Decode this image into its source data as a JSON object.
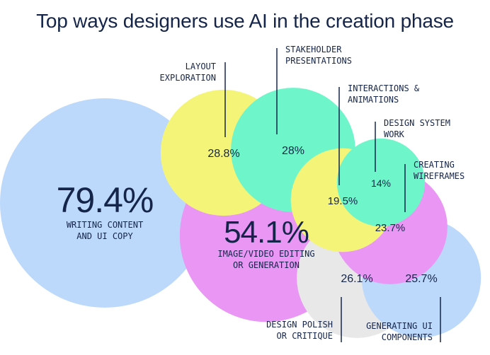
{
  "chart_data": {
    "type": "bubble",
    "title": "Top ways designers use AI in the creation phase",
    "unit": "%",
    "colors": {
      "ink": "#15254a",
      "blue": "#bcd9fb",
      "magenta": "#e996f4",
      "yellow": "#f4f578",
      "mint": "#6ef5c9",
      "grey": "#e8e8e8"
    },
    "series": [
      {
        "label_lines": [
          "WRITING CONTENT",
          "AND UI COPY"
        ],
        "value": 79.4,
        "display": "79.4%",
        "color": "#bcd9fb"
      },
      {
        "label_lines": [
          "IMAGE/VIDEO EDITING",
          "OR GENERATION"
        ],
        "value": 54.1,
        "display": "54.1%",
        "color": "#e996f4"
      },
      {
        "label_lines": [
          "LAYOUT",
          "EXPLORATION"
        ],
        "value": 28.8,
        "display": "28.8%",
        "color": "#f4f578"
      },
      {
        "label_lines": [
          "STAKEHOLDER",
          "PRESENTATIONS"
        ],
        "value": 28,
        "display": "28%",
        "color": "#6ef5c9"
      },
      {
        "label_lines": [
          "DESIGN POLISH",
          "OR CRITIQUE"
        ],
        "value": 26.1,
        "display": "26.1%",
        "color": "#e8e8e8"
      },
      {
        "label_lines": [
          "GENERATING UI",
          "COMPONENTS"
        ],
        "value": 25.7,
        "display": "25.7%",
        "color": "#bcd9fb"
      },
      {
        "label_lines": [
          "CREATING",
          "WIREFRAMES"
        ],
        "value": 23.7,
        "display": "23.7%",
        "color": "#e996f4"
      },
      {
        "label_lines": [
          "INTERACTIONS &",
          "ANIMATIONS"
        ],
        "value": 19.5,
        "display": "19.5%",
        "color": "#f4f578"
      },
      {
        "label_lines": [
          "DESIGN SYSTEM",
          "WORK"
        ],
        "value": 14,
        "display": "14%",
        "color": "#6ef5c9"
      }
    ]
  }
}
